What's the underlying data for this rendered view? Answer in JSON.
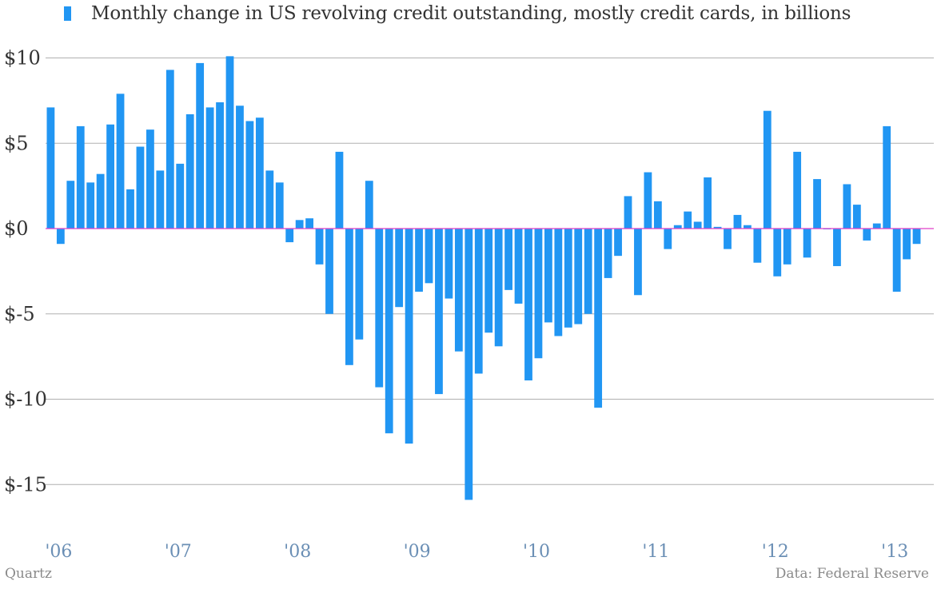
{
  "legend": {
    "label": "Monthly change in US revolving credit outstanding, mostly credit cards, in billions",
    "color": "#2196f3"
  },
  "footer": {
    "brand": "Quartz",
    "source": "Data: Federal Reserve"
  },
  "colors": {
    "bar": "#2196f3",
    "zero_line": "#e040c8",
    "grid": "#b0b0b0",
    "y_tick_text": "#333333",
    "x_tick_text": "#6b8fb5"
  },
  "chart_data": {
    "type": "bar",
    "ylim": [
      -18,
      10.5
    ],
    "grid": true,
    "y_ticks": [
      {
        "value": 10,
        "label": "$10"
      },
      {
        "value": 5,
        "label": "$5"
      },
      {
        "value": 0,
        "label": "$0"
      },
      {
        "value": -5,
        "label": "$-5"
      },
      {
        "value": -10,
        "label": "$-10"
      },
      {
        "value": -15,
        "label": "$-15"
      }
    ],
    "x_ticks": [
      {
        "label": "'06",
        "month_index": 0
      },
      {
        "label": "'07",
        "month_index": 12
      },
      {
        "label": "'08",
        "month_index": 24
      },
      {
        "label": "'09",
        "month_index": 36
      },
      {
        "label": "'10",
        "month_index": 48
      },
      {
        "label": "'11",
        "month_index": 60
      },
      {
        "label": "'12",
        "month_index": 72
      },
      {
        "label": "'13",
        "month_index": 84
      }
    ],
    "start_month": "2006-01",
    "values": [
      7.1,
      -0.9,
      2.8,
      6.0,
      2.7,
      3.2,
      6.1,
      7.9,
      2.3,
      4.8,
      5.8,
      3.4,
      9.3,
      3.8,
      6.7,
      9.7,
      7.1,
      7.4,
      10.1,
      7.2,
      6.3,
      6.5,
      3.4,
      2.7,
      -0.8,
      0.5,
      0.6,
      -2.1,
      -5.0,
      4.5,
      -8.0,
      -6.5,
      2.8,
      -9.3,
      -12.0,
      -4.6,
      -12.6,
      -3.7,
      -3.2,
      -9.7,
      -4.1,
      -7.2,
      -15.9,
      -8.5,
      -6.1,
      -6.9,
      -3.6,
      -4.4,
      -8.9,
      -7.6,
      -5.5,
      -6.3,
      -5.8,
      -5.6,
      -5.0,
      -10.5,
      -2.9,
      -1.6,
      1.9,
      -3.9,
      3.3,
      1.6,
      -1.2,
      0.2,
      1.0,
      0.4,
      3.0,
      0.1,
      -1.2,
      0.8,
      0.2,
      -2.0,
      6.9,
      -2.8,
      -2.1,
      4.5,
      -1.7,
      2.9,
      0.0,
      -2.2,
      2.6,
      1.4,
      -0.7,
      0.3,
      6.0,
      -3.7,
      -1.8,
      -0.9
    ]
  }
}
